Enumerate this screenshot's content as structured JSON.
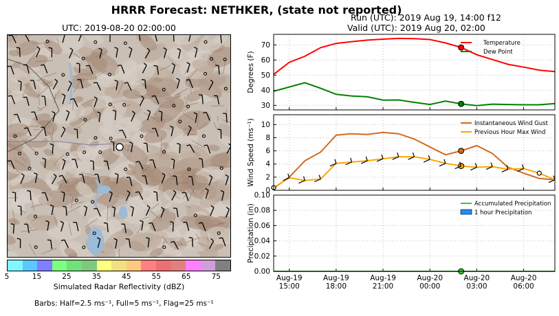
{
  "title": "HRRR Forecast: NETHKER, (state not reported)",
  "run_line": "Run (UTC): 2019 Aug 19, 14:00 f12",
  "valid_line": "Valid (UTC): 2019 Aug 20, 02:00",
  "map": {
    "title": "UTC: 2019-08-20 02:00:00",
    "colorbar": {
      "label": "Simulated Radar Reflectivity (dBZ)",
      "ticks": [
        "5",
        "15",
        "25",
        "35",
        "45",
        "55",
        "65",
        "75"
      ],
      "colors": [
        "#7ff7ff",
        "#5bc8ff",
        "#7f7fff",
        "#7fff7f",
        "#71e27a",
        "#7ec97f",
        "#ffff80",
        "#f1e07f",
        "#ffc87f",
        "#ff8080",
        "#e97171",
        "#e28080",
        "#ff80ff",
        "#d09fd9",
        "#808080"
      ]
    },
    "barbs_note": "Barbs: Half=2.5 ms⁻¹, Full=5 ms⁻¹, Flag=25 ms⁻¹"
  },
  "x_tick_labels": [
    {
      "day": "Aug-19",
      "time": "15:00"
    },
    {
      "day": "Aug-19",
      "time": "18:00"
    },
    {
      "day": "Aug-19",
      "time": "21:00"
    },
    {
      "day": "Aug-20",
      "time": "00:00"
    },
    {
      "day": "Aug-20",
      "time": "03:00"
    },
    {
      "day": "Aug-20",
      "time": "06:00"
    }
  ],
  "colors": {
    "temperature": "#ff0000",
    "dew_point": "#008000",
    "gust": "#d2691e",
    "max_wind": "#ffa500",
    "accum_precip": "#32cd32",
    "precip_bar": "#1e90ff"
  },
  "chart_data": [
    {
      "type": "line",
      "ylabel": "Degrees (F)",
      "x": [
        "2019-08-19 14:00",
        "2019-08-19 15:00",
        "2019-08-19 16:00",
        "2019-08-19 17:00",
        "2019-08-19 18:00",
        "2019-08-19 19:00",
        "2019-08-19 20:00",
        "2019-08-19 21:00",
        "2019-08-19 22:00",
        "2019-08-19 23:00",
        "2019-08-20 00:00",
        "2019-08-20 01:00",
        "2019-08-20 02:00",
        "2019-08-20 03:00",
        "2019-08-20 04:00",
        "2019-08-20 05:00",
        "2019-08-20 06:00",
        "2019-08-20 07:00",
        "2019-08-20 08:00"
      ],
      "xlim": [
        "2019-08-19 14:00",
        "2019-08-20 08:00"
      ],
      "ylim": [
        27,
        77
      ],
      "yticks": [
        30,
        40,
        50,
        60,
        70
      ],
      "legend": "top-right",
      "grid": true,
      "current_valid": "2019-08-20 02:00",
      "series": [
        {
          "name": "Temperature",
          "values": [
            50.5,
            58.5,
            62.5,
            68.2,
            71,
            72.2,
            73.2,
            73.8,
            74.3,
            74.2,
            73.6,
            71.3,
            68.3,
            63.5,
            60.3,
            57.2,
            55.3,
            53.3,
            52.3
          ]
        },
        {
          "name": "Dew Point",
          "values": [
            39.3,
            42.2,
            45,
            41.3,
            37.3,
            36.2,
            35.7,
            33.5,
            33.6,
            32,
            30.6,
            32.8,
            31,
            29.8,
            30.8,
            30.6,
            30.4,
            30.4,
            31.2
          ]
        }
      ]
    },
    {
      "type": "line",
      "ylabel": "Wind Speed (ms⁻¹)",
      "x": [
        "2019-08-19 14:00",
        "2019-08-19 15:00",
        "2019-08-19 16:00",
        "2019-08-19 17:00",
        "2019-08-19 18:00",
        "2019-08-19 19:00",
        "2019-08-19 20:00",
        "2019-08-19 21:00",
        "2019-08-19 22:00",
        "2019-08-19 23:00",
        "2019-08-20 00:00",
        "2019-08-20 01:00",
        "2019-08-20 02:00",
        "2019-08-20 03:00",
        "2019-08-20 04:00",
        "2019-08-20 05:00",
        "2019-08-20 06:00",
        "2019-08-20 07:00",
        "2019-08-20 08:00"
      ],
      "xlim": [
        "2019-08-19 14:00",
        "2019-08-20 08:00"
      ],
      "ylim": [
        0,
        11.5
      ],
      "yticks": [
        0,
        2,
        4,
        6,
        8,
        10
      ],
      "legend": "top-right",
      "grid": true,
      "current_valid": "2019-08-20 02:00",
      "series": [
        {
          "name": "Instantaneous Wind Gust",
          "values": [
            0.3,
            2,
            4.5,
            5.8,
            8.4,
            8.6,
            8.5,
            8.8,
            8.6,
            7.8,
            6.6,
            5.4,
            6,
            6.8,
            5.6,
            3.5,
            2.6,
            1.8,
            1.6
          ]
        },
        {
          "name": "Previous Hour Max Wind",
          "values": [
            0.4,
            1.9,
            1.5,
            1.7,
            4.1,
            4.3,
            4.5,
            4.8,
            5.1,
            5.1,
            4.7,
            4.1,
            3.7,
            3.5,
            3.6,
            3.2,
            3.3,
            2.6,
            1.6
          ]
        }
      ]
    },
    {
      "type": "bar",
      "ylabel": "Precipitation (in)",
      "x": [
        "2019-08-19 14:00",
        "2019-08-19 15:00",
        "2019-08-19 16:00",
        "2019-08-19 17:00",
        "2019-08-19 18:00",
        "2019-08-19 19:00",
        "2019-08-19 20:00",
        "2019-08-19 21:00",
        "2019-08-19 22:00",
        "2019-08-19 23:00",
        "2019-08-20 00:00",
        "2019-08-20 01:00",
        "2019-08-20 02:00",
        "2019-08-20 03:00",
        "2019-08-20 04:00",
        "2019-08-20 05:00",
        "2019-08-20 06:00",
        "2019-08-20 07:00",
        "2019-08-20 08:00"
      ],
      "xlim": [
        "2019-08-19 14:00",
        "2019-08-20 08:00"
      ],
      "ylim": [
        0,
        0.1
      ],
      "yticks": [
        "0.00",
        "0.02",
        "0.04",
        "0.06",
        "0.08",
        "0.10"
      ],
      "legend": "top-right",
      "grid": true,
      "current_valid": "2019-08-20 02:00",
      "series": [
        {
          "name": "Accumulated Precipitation",
          "values": [
            0,
            0,
            0,
            0,
            0,
            0,
            0,
            0,
            0,
            0,
            0,
            0,
            0,
            0,
            0,
            0,
            0,
            0,
            0
          ]
        },
        {
          "name": "1 hour Precipitation",
          "values": [
            0,
            0,
            0,
            0,
            0,
            0,
            0,
            0,
            0,
            0,
            0,
            0,
            0,
            0,
            0,
            0,
            0,
            0,
            0
          ]
        }
      ]
    }
  ]
}
